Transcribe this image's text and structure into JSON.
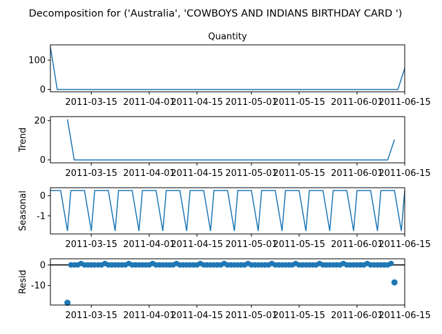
{
  "figure": {
    "suptitle": "Decomposition for ('Australia', 'COWBOYS AND INDIANS BIRTHDAY CARD ')"
  },
  "x_ticks": [
    "2011-03-15",
    "2011-04-01",
    "2011-04-15",
    "2011-05-01",
    "2011-05-15",
    "2011-06-01",
    "2011-06-15"
  ],
  "colors": {
    "line": "#1f77b4",
    "axis": "#000000",
    "zero_line": "#000000"
  },
  "chart_data": [
    {
      "type": "line",
      "panel": "observed",
      "title": "Quantity",
      "ylabel": "",
      "xlim": [
        "2011-03-03",
        "2011-06-15"
      ],
      "ylim": [
        -8,
        152
      ],
      "yticks": [
        0,
        100
      ],
      "points": [
        [
          "2011-03-03",
          144
        ],
        [
          "2011-03-05",
          0
        ],
        [
          "2011-06-13",
          0
        ],
        [
          "2011-06-15",
          72
        ]
      ]
    },
    {
      "type": "line",
      "panel": "trend",
      "title": "",
      "ylabel": "Trend",
      "xlim": [
        "2011-03-03",
        "2011-06-15"
      ],
      "ylim": [
        -1.5,
        22
      ],
      "yticks": [
        0,
        20
      ],
      "points": [
        [
          "2011-03-08",
          20.6
        ],
        [
          "2011-03-10",
          0
        ],
        [
          "2011-06-10",
          0
        ],
        [
          "2011-06-12",
          10.3
        ]
      ]
    },
    {
      "type": "line",
      "panel": "seasonal",
      "title": "",
      "ylabel": "Seasonal",
      "xlim": [
        "2011-03-03",
        "2011-06-15"
      ],
      "ylim": [
        -1.9,
        0.4
      ],
      "yticks": [
        0,
        -1
      ],
      "period_days": 7,
      "first_low": "2011-03-08",
      "high": 0.26,
      "low": -1.75
    },
    {
      "type": "scatter",
      "panel": "resid",
      "title": "",
      "ylabel": "Resid",
      "xlim": [
        "2011-03-03",
        "2011-06-15"
      ],
      "ylim": [
        -19.5,
        3
      ],
      "yticks": [
        0,
        -10
      ],
      "zero_line": true,
      "baseline_range": [
        "2011-03-09",
        "2011-06-11"
      ],
      "baseline_value": 0,
      "bump_every_days": 7,
      "bump_first": "2011-03-12",
      "bump_value": 0.7,
      "outliers": [
        [
          "2011-03-08",
          -18.4
        ],
        [
          "2011-06-12",
          -8.5
        ]
      ]
    }
  ]
}
